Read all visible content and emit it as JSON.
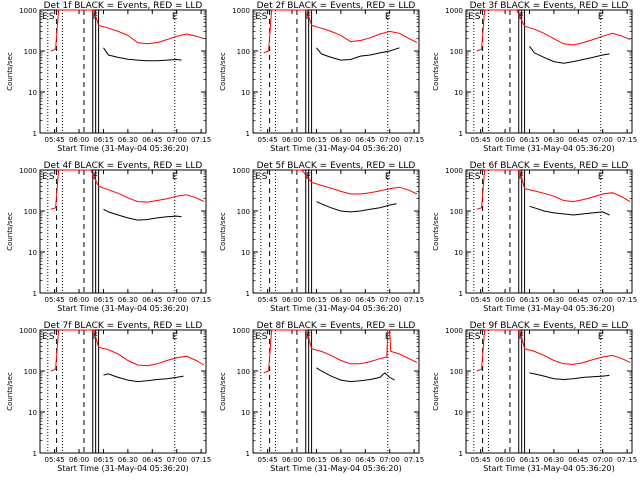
{
  "figure": {
    "background": "#ffffff"
  },
  "shared": {
    "ylabel": "Counts/sec",
    "xlabel": "Start Time (31-May-04 05:36:20)",
    "yticks": [
      "1",
      "10",
      "100",
      "1000"
    ],
    "xticks": [
      "05:45",
      "06:00",
      "06:15",
      "06:30",
      "06:45",
      "07:00",
      "07:15"
    ],
    "marker_labels": [
      "E",
      "S",
      "F",
      "E"
    ],
    "colors": {
      "events": "#000000",
      "lld": "#ff0000"
    },
    "ylim": [
      1,
      1000
    ],
    "y_scale": "log"
  },
  "chart_data": [
    {
      "type": "line",
      "title": "Det 1f BLACK = Events, RED = LLD",
      "series": [
        {
          "name": "Events",
          "values": [
            [
              6.25,
              120
            ],
            [
              6.3,
              80
            ],
            [
              6.4,
              70
            ],
            [
              6.5,
              63
            ],
            [
              6.6,
              60
            ],
            [
              6.7,
              58
            ],
            [
              6.8,
              58
            ],
            [
              6.9,
              60
            ],
            [
              7.0,
              62
            ],
            [
              7.05,
              60
            ]
          ]
        },
        {
          "name": "LLD",
          "values": [
            [
              5.71,
              100
            ],
            [
              5.76,
              110
            ],
            [
              5.79,
              1000
            ],
            [
              5.8,
              1000
            ],
            [
              6.15,
              1000
            ],
            [
              6.2,
              420
            ],
            [
              6.3,
              360
            ],
            [
              6.4,
              300
            ],
            [
              6.5,
              240
            ],
            [
              6.6,
              160
            ],
            [
              6.7,
              150
            ],
            [
              6.8,
              160
            ],
            [
              6.9,
              190
            ],
            [
              7.0,
              230
            ],
            [
              7.1,
              260
            ],
            [
              7.2,
              230
            ],
            [
              7.28,
              200
            ]
          ]
        }
      ]
    },
    {
      "type": "line",
      "title": "Det 2f BLACK = Events, RED = LLD",
      "series": [
        {
          "name": "Events",
          "values": [
            [
              6.25,
              120
            ],
            [
              6.3,
              85
            ],
            [
              6.4,
              70
            ],
            [
              6.5,
              60
            ],
            [
              6.6,
              62
            ],
            [
              6.7,
              75
            ],
            [
              6.8,
              80
            ],
            [
              6.9,
              90
            ],
            [
              7.0,
              100
            ],
            [
              7.1,
              120
            ]
          ]
        },
        {
          "name": "LLD",
          "values": [
            [
              5.71,
              90
            ],
            [
              5.76,
              100
            ],
            [
              5.79,
              1000
            ],
            [
              5.8,
              1000
            ],
            [
              6.15,
              1000
            ],
            [
              6.2,
              420
            ],
            [
              6.3,
              360
            ],
            [
              6.4,
              300
            ],
            [
              6.5,
              240
            ],
            [
              6.6,
              170
            ],
            [
              6.7,
              180
            ],
            [
              6.8,
              210
            ],
            [
              6.9,
              260
            ],
            [
              7.0,
              300
            ],
            [
              7.1,
              270
            ],
            [
              7.2,
              200
            ],
            [
              7.28,
              160
            ]
          ]
        }
      ]
    },
    {
      "type": "line",
      "title": "Det 3f BLACK = Events, RED = LLD",
      "series": [
        {
          "name": "Events",
          "values": [
            [
              6.25,
              130
            ],
            [
              6.3,
              90
            ],
            [
              6.4,
              70
            ],
            [
              6.5,
              55
            ],
            [
              6.6,
              50
            ],
            [
              6.7,
              55
            ],
            [
              6.8,
              62
            ],
            [
              6.9,
              70
            ],
            [
              7.0,
              80
            ],
            [
              7.07,
              85
            ]
          ]
        },
        {
          "name": "LLD",
          "values": [
            [
              5.71,
              100
            ],
            [
              5.76,
              110
            ],
            [
              5.79,
              1000
            ],
            [
              5.8,
              1000
            ],
            [
              6.12,
              1000
            ],
            [
              6.2,
              400
            ],
            [
              6.3,
              340
            ],
            [
              6.4,
              270
            ],
            [
              6.5,
              200
            ],
            [
              6.6,
              150
            ],
            [
              6.7,
              140
            ],
            [
              6.8,
              160
            ],
            [
              6.9,
              190
            ],
            [
              7.0,
              230
            ],
            [
              7.1,
              270
            ],
            [
              7.2,
              230
            ],
            [
              7.28,
              190
            ]
          ]
        }
      ]
    },
    {
      "type": "line",
      "title": "Det 4f BLACK = Events, RED = LLD",
      "series": [
        {
          "name": "Events",
          "values": [
            [
              6.25,
              110
            ],
            [
              6.3,
              95
            ],
            [
              6.4,
              80
            ],
            [
              6.5,
              68
            ],
            [
              6.6,
              60
            ],
            [
              6.7,
              62
            ],
            [
              6.8,
              68
            ],
            [
              6.9,
              72
            ],
            [
              7.0,
              75
            ],
            [
              7.05,
              72
            ]
          ]
        },
        {
          "name": "LLD",
          "values": [
            [
              5.71,
              110
            ],
            [
              5.76,
              120
            ],
            [
              5.79,
              1000
            ],
            [
              5.8,
              1000
            ],
            [
              6.12,
              1000
            ],
            [
              6.2,
              400
            ],
            [
              6.3,
              330
            ],
            [
              6.4,
              270
            ],
            [
              6.5,
              210
            ],
            [
              6.6,
              170
            ],
            [
              6.7,
              165
            ],
            [
              6.8,
              180
            ],
            [
              6.9,
              200
            ],
            [
              7.0,
              230
            ],
            [
              7.1,
              250
            ],
            [
              7.2,
              210
            ],
            [
              7.28,
              170
            ]
          ]
        }
      ]
    },
    {
      "type": "line",
      "title": "Det 5f BLACK = Events, RED = LLD",
      "series": [
        {
          "name": "Events",
          "values": [
            [
              6.25,
              170
            ],
            [
              6.3,
              150
            ],
            [
              6.4,
              120
            ],
            [
              6.5,
              100
            ],
            [
              6.6,
              95
            ],
            [
              6.7,
              100
            ],
            [
              6.8,
              110
            ],
            [
              6.9,
              120
            ],
            [
              7.0,
              140
            ],
            [
              7.07,
              150
            ]
          ]
        },
        {
          "name": "LLD",
          "values": [
            [
              6.0,
              1000
            ],
            [
              6.1,
              1000
            ],
            [
              6.2,
              500
            ],
            [
              6.3,
              420
            ],
            [
              6.4,
              360
            ],
            [
              6.5,
              300
            ],
            [
              6.6,
              260
            ],
            [
              6.7,
              260
            ],
            [
              6.8,
              280
            ],
            [
              6.9,
              310
            ],
            [
              7.0,
              350
            ],
            [
              7.1,
              380
            ],
            [
              7.2,
              320
            ],
            [
              7.28,
              260
            ]
          ]
        }
      ]
    },
    {
      "type": "line",
      "title": "Det 6f BLACK = Events, RED = LLD",
      "series": [
        {
          "name": "Events",
          "values": [
            [
              6.25,
              130
            ],
            [
              6.3,
              120
            ],
            [
              6.4,
              100
            ],
            [
              6.5,
              90
            ],
            [
              6.6,
              85
            ],
            [
              6.7,
              80
            ],
            [
              6.8,
              85
            ],
            [
              6.9,
              90
            ],
            [
              7.0,
              95
            ],
            [
              7.07,
              80
            ]
          ]
        },
        {
          "name": "LLD",
          "values": [
            [
              5.71,
              110
            ],
            [
              5.76,
              120
            ],
            [
              5.79,
              1000
            ],
            [
              5.8,
              1000
            ],
            [
              6.15,
              1000
            ],
            [
              6.2,
              350
            ],
            [
              6.3,
              310
            ],
            [
              6.4,
              270
            ],
            [
              6.5,
              230
            ],
            [
              6.6,
              180
            ],
            [
              6.7,
              170
            ],
            [
              6.8,
              190
            ],
            [
              6.9,
              220
            ],
            [
              7.0,
              260
            ],
            [
              7.1,
              280
            ],
            [
              7.2,
              220
            ],
            [
              7.28,
              170
            ]
          ]
        }
      ]
    },
    {
      "type": "line",
      "title": "Det 7f BLACK = Events, RED = LLD",
      "series": [
        {
          "name": "Events",
          "values": [
            [
              6.25,
              80
            ],
            [
              6.3,
              85
            ],
            [
              6.4,
              70
            ],
            [
              6.5,
              60
            ],
            [
              6.6,
              55
            ],
            [
              6.7,
              58
            ],
            [
              6.8,
              62
            ],
            [
              6.9,
              65
            ],
            [
              7.0,
              70
            ],
            [
              7.07,
              75
            ]
          ]
        },
        {
          "name": "LLD",
          "values": [
            [
              5.71,
              100
            ],
            [
              5.76,
              110
            ],
            [
              5.79,
              1000
            ],
            [
              5.8,
              1000
            ],
            [
              6.15,
              1000
            ],
            [
              6.2,
              380
            ],
            [
              6.3,
              330
            ],
            [
              6.4,
              260
            ],
            [
              6.5,
              180
            ],
            [
              6.6,
              140
            ],
            [
              6.7,
              135
            ],
            [
              6.8,
              150
            ],
            [
              6.9,
              180
            ],
            [
              7.0,
              210
            ],
            [
              7.1,
              230
            ],
            [
              7.2,
              180
            ],
            [
              7.28,
              140
            ]
          ]
        }
      ]
    },
    {
      "type": "line",
      "title": "Det 8f BLACK = Events, RED = LLD",
      "series": [
        {
          "name": "Events",
          "values": [
            [
              6.25,
              120
            ],
            [
              6.3,
              100
            ],
            [
              6.4,
              75
            ],
            [
              6.5,
              60
            ],
            [
              6.6,
              55
            ],
            [
              6.7,
              58
            ],
            [
              6.8,
              62
            ],
            [
              6.9,
              70
            ],
            [
              6.95,
              90
            ],
            [
              7.0,
              70
            ],
            [
              7.05,
              60
            ]
          ]
        },
        {
          "name": "LLD",
          "values": [
            [
              5.71,
              90
            ],
            [
              5.76,
              100
            ],
            [
              5.79,
              1000
            ],
            [
              5.8,
              1000
            ],
            [
              6.15,
              1000
            ],
            [
              6.2,
              350
            ],
            [
              6.3,
              300
            ],
            [
              6.4,
              240
            ],
            [
              6.5,
              180
            ],
            [
              6.6,
              150
            ],
            [
              6.7,
              150
            ],
            [
              6.8,
              170
            ],
            [
              6.9,
              200
            ],
            [
              6.97,
              220
            ],
            [
              6.98,
              1000
            ],
            [
              7.0,
              1000
            ],
            [
              7.01,
              300
            ],
            [
              7.1,
              260
            ],
            [
              7.2,
              200
            ],
            [
              7.28,
              160
            ]
          ]
        }
      ]
    },
    {
      "type": "line",
      "title": "Det 9f BLACK = Events, RED = LLD",
      "series": [
        {
          "name": "Events",
          "values": [
            [
              6.25,
              90
            ],
            [
              6.3,
              85
            ],
            [
              6.4,
              75
            ],
            [
              6.5,
              65
            ],
            [
              6.6,
              62
            ],
            [
              6.7,
              65
            ],
            [
              6.8,
              70
            ],
            [
              6.9,
              72
            ],
            [
              7.0,
              75
            ],
            [
              7.07,
              78
            ]
          ]
        },
        {
          "name": "LLD",
          "values": [
            [
              5.71,
              100
            ],
            [
              5.76,
              110
            ],
            [
              5.79,
              1000
            ],
            [
              5.8,
              1000
            ],
            [
              6.15,
              1000
            ],
            [
              6.2,
              350
            ],
            [
              6.3,
              300
            ],
            [
              6.4,
              240
            ],
            [
              6.5,
              180
            ],
            [
              6.6,
              150
            ],
            [
              6.7,
              145
            ],
            [
              6.8,
              160
            ],
            [
              6.9,
              190
            ],
            [
              7.0,
              220
            ],
            [
              7.1,
              240
            ],
            [
              7.2,
              200
            ],
            [
              7.28,
              160
            ]
          ]
        }
      ]
    }
  ]
}
